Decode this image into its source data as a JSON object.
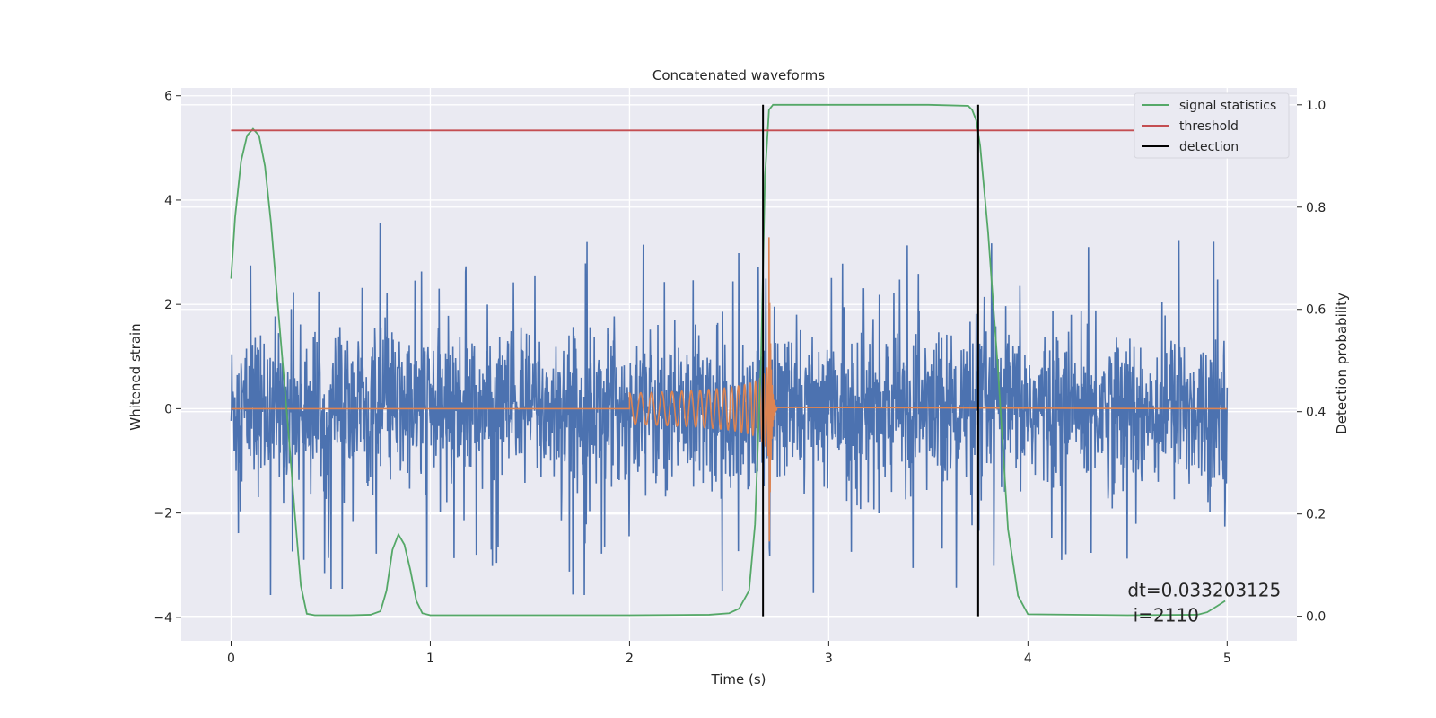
{
  "chart_data": {
    "type": "line",
    "title": "Concatenated waveforms",
    "xlabel": "Time (s)",
    "ylabel": "Whitened strain",
    "y2label": "Detection probability",
    "xlim": [
      -0.25,
      5.35
    ],
    "ylim": [
      -4.45,
      6.15
    ],
    "y2lim": [
      -0.048,
      1.033
    ],
    "xticks": [
      0,
      1,
      2,
      3,
      4,
      5
    ],
    "xtick_labels": [
      "0",
      "1",
      "2",
      "3",
      "4",
      "5"
    ],
    "yticks": [
      -4,
      -2,
      0,
      2,
      4,
      6
    ],
    "ytick_labels": [
      "−4",
      "−2",
      "0",
      "2",
      "4",
      "6"
    ],
    "y2ticks": [
      0.0,
      0.2,
      0.4,
      0.6,
      0.8,
      1.0
    ],
    "y2tick_labels": [
      "0.0",
      "0.2",
      "0.4",
      "0.6",
      "0.8",
      "1.0"
    ],
    "grid": true,
    "legend_position": "top-right",
    "background_color": "#eaeaf2",
    "legend": [
      {
        "label": "signal statistics",
        "color": "#55a868"
      },
      {
        "label": "threshold",
        "color": "#c44e52"
      },
      {
        "label": "detection",
        "color": "#000000"
      }
    ],
    "series": [
      {
        "axis": "left",
        "color": "#4c72b0",
        "kind": "noise",
        "x_range": [
          0,
          5
        ],
        "approx_amplitude_range": [
          -4.0,
          3.97
        ],
        "envelope_note": "dense whitened noise, typical spread about -1.5 to 1.5"
      },
      {
        "axis": "left",
        "color": "#dd8452",
        "kind": "chirp",
        "x_range": [
          0,
          5
        ],
        "chirp_start": 2.0,
        "chirp_merger": 2.7,
        "chirp_end": 2.74,
        "amplitude_at_start": 0.3,
        "peak_amplitude": 3.4
      },
      {
        "name": "signal statistics",
        "axis": "right",
        "color": "#55a868",
        "x": [
          0.0,
          0.02,
          0.05,
          0.08,
          0.11,
          0.14,
          0.17,
          0.2,
          0.23,
          0.26,
          0.29,
          0.32,
          0.35,
          0.38,
          0.42,
          0.5,
          0.6,
          0.7,
          0.75,
          0.78,
          0.81,
          0.84,
          0.87,
          0.9,
          0.93,
          0.96,
          1.0,
          1.5,
          2.0,
          2.4,
          2.5,
          2.55,
          2.6,
          2.63,
          2.66,
          2.68,
          2.7,
          2.72,
          2.75,
          3.0,
          3.5,
          3.7,
          3.72,
          3.74,
          3.76,
          3.8,
          3.85,
          3.9,
          3.95,
          4.0,
          4.5,
          4.85,
          4.9,
          4.95,
          4.99
        ],
        "values": [
          0.66,
          0.78,
          0.89,
          0.94,
          0.953,
          0.94,
          0.88,
          0.77,
          0.63,
          0.49,
          0.35,
          0.2,
          0.06,
          0.005,
          0.002,
          0.002,
          0.002,
          0.003,
          0.01,
          0.05,
          0.13,
          0.16,
          0.14,
          0.09,
          0.03,
          0.006,
          0.002,
          0.002,
          0.002,
          0.003,
          0.006,
          0.015,
          0.05,
          0.18,
          0.5,
          0.86,
          0.99,
          1.0,
          1.0,
          1.0,
          1.0,
          0.998,
          0.99,
          0.97,
          0.92,
          0.75,
          0.48,
          0.17,
          0.04,
          0.004,
          0.002,
          0.003,
          0.008,
          0.02,
          0.03
        ]
      },
      {
        "name": "threshold",
        "axis": "right",
        "color": "#c44e52",
        "x": [
          0,
          5
        ],
        "values": [
          0.95,
          0.95
        ]
      }
    ],
    "detections": [
      2.67,
      3.75
    ],
    "annotation": {
      "line1": "dt=0.033203125",
      "line2": " i=2110",
      "x": 4.5,
      "y": -3.6
    }
  }
}
